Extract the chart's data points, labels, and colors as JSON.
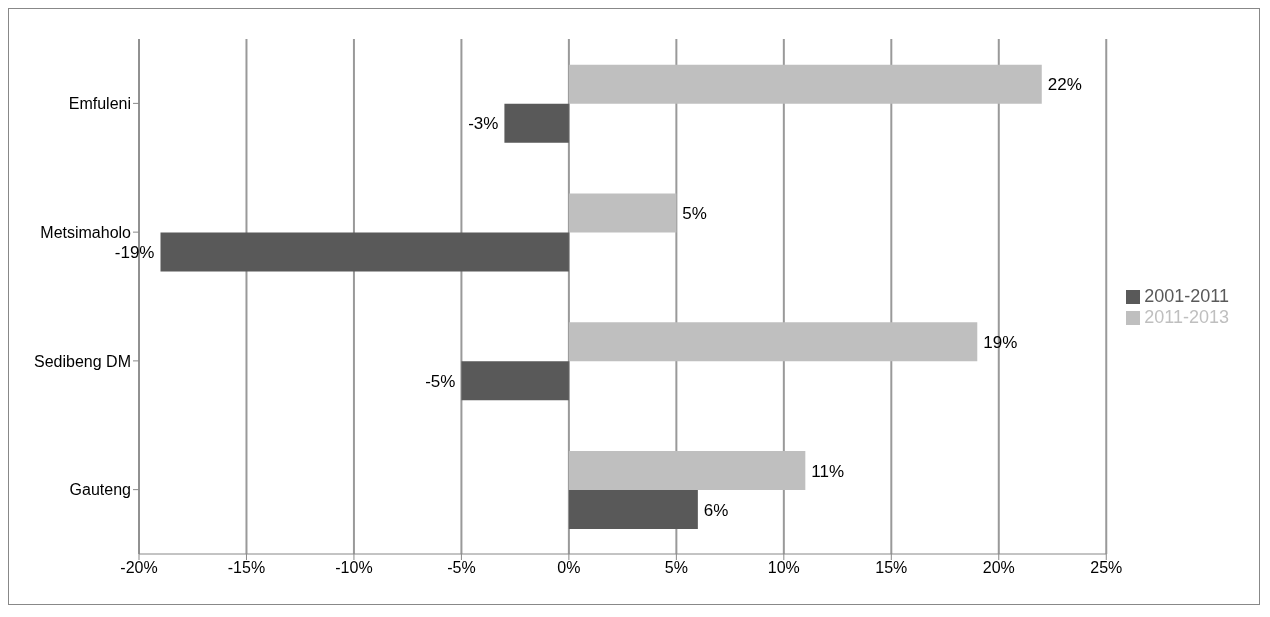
{
  "chart_data": {
    "type": "bar",
    "orientation": "horizontal",
    "categories": [
      "Emfuleni",
      "Metsimaholo",
      "Sedibeng DM",
      "Gauteng"
    ],
    "series": [
      {
        "name": "2011-2013",
        "color": "#bfbfbf",
        "values": [
          22,
          5,
          19,
          11
        ],
        "value_labels": [
          "22%",
          "5%",
          "19%",
          "11%"
        ]
      },
      {
        "name": "2001-2011",
        "color": "#595959",
        "values": [
          -3,
          -19,
          -5,
          6
        ],
        "value_labels": [
          "-3%",
          "-19%",
          "-5%",
          "6%"
        ]
      }
    ],
    "xlim": [
      -20,
      25
    ],
    "xticks": [
      {
        "value": -20,
        "label": "-20%"
      },
      {
        "value": -15,
        "label": "-15%"
      },
      {
        "value": -10,
        "label": "-10%"
      },
      {
        "value": -5,
        "label": "-5%"
      },
      {
        "value": 0,
        "label": "0%"
      },
      {
        "value": 5,
        "label": "5%"
      },
      {
        "value": 10,
        "label": "10%"
      },
      {
        "value": 15,
        "label": "15%"
      },
      {
        "value": 20,
        "label": "20%"
      },
      {
        "value": 25,
        "label": "25%"
      }
    ],
    "grid": "x",
    "legend": "right"
  }
}
